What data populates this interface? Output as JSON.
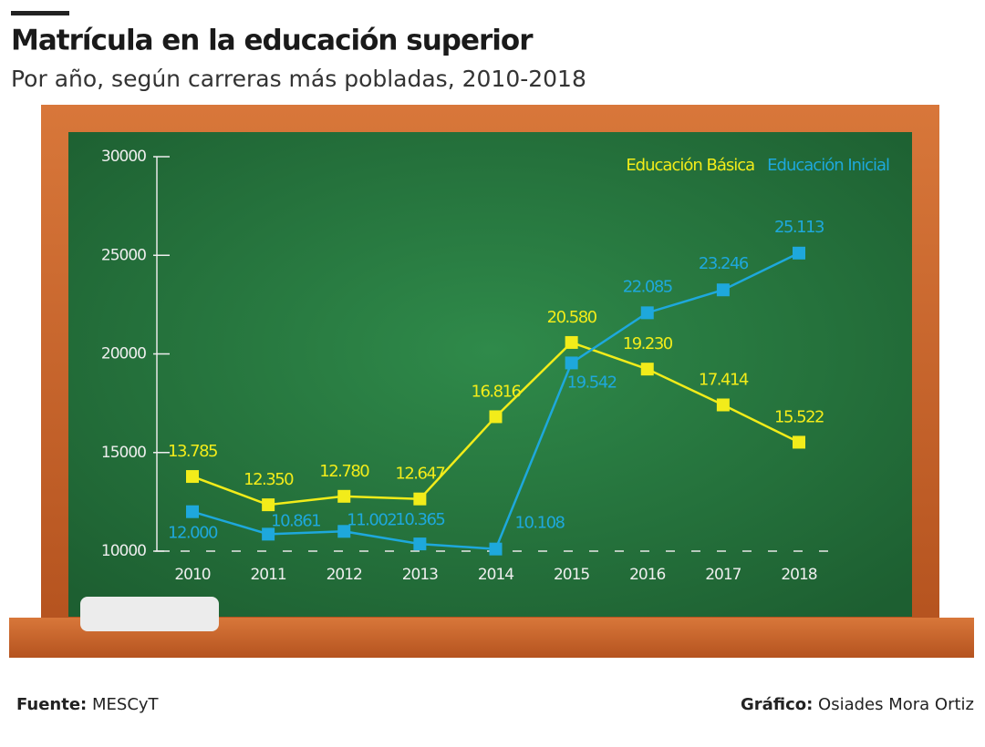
{
  "chart_data": {
    "type": "line",
    "title": "Matrícula en la educación superior",
    "subtitle": "Por año, según carreras más pobladas, 2010-2018",
    "categories": [
      "2010",
      "2011",
      "2012",
      "2013",
      "2014",
      "2015",
      "2016",
      "2017",
      "2018"
    ],
    "series": [
      {
        "name": "Educación Básica",
        "color": "#f2ec1a",
        "values": [
          13785,
          12350,
          12780,
          12647,
          16816,
          20580,
          19230,
          17414,
          15522
        ],
        "value_labels": [
          "13.785",
          "12.350",
          "12.780",
          "12.647",
          "16.816",
          "20.580",
          "19.230",
          "17.414",
          "15.522"
        ]
      },
      {
        "name": "Educación Inicial",
        "color": "#1ea8dc",
        "values": [
          12000,
          10861,
          11002,
          10365,
          10108,
          19542,
          22085,
          23246,
          25113
        ],
        "value_labels": [
          "12.000",
          "10.861",
          "11.002",
          "10.365",
          "10.108",
          "19.542",
          "22.085",
          "23.246",
          "25.113"
        ]
      }
    ],
    "ylim": [
      10000,
      30000
    ],
    "yticks": [
      10000,
      15000,
      20000,
      25000,
      30000
    ],
    "legend": "top-right",
    "source_label": "Fuente:",
    "source": "MESCyT",
    "credit_label": "Gráfico:",
    "credit": "Osiades Mora Ortiz"
  }
}
